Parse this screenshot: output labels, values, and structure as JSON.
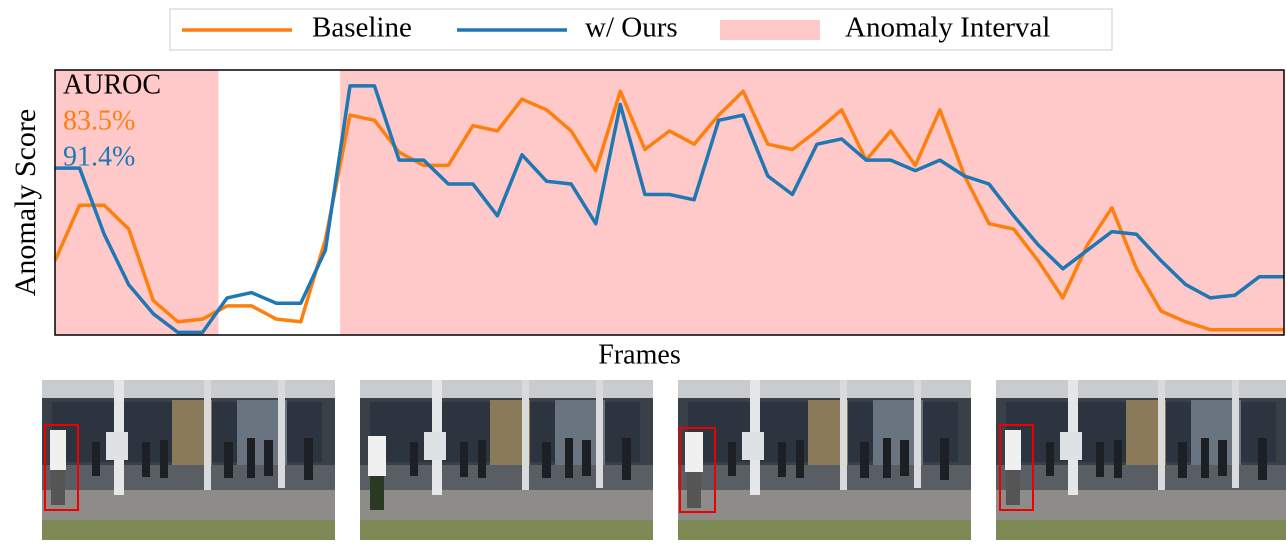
{
  "chart_data": {
    "type": "line",
    "y_label": "Anomaly Score",
    "x_label": "Frames",
    "xlim": [
      0,
      100
    ],
    "ylim": [
      0,
      1
    ],
    "x": [
      0,
      2,
      4,
      6,
      8,
      10,
      12,
      14,
      16,
      18,
      20,
      22,
      24,
      26,
      28,
      30,
      32,
      34,
      36,
      38,
      40,
      42,
      44,
      46,
      48,
      50,
      52,
      54,
      56,
      58,
      60,
      62,
      64,
      66,
      68,
      70,
      72,
      74,
      76,
      78,
      80,
      82,
      84,
      86,
      88,
      90,
      92,
      94,
      96,
      98,
      100
    ],
    "series": [
      {
        "name": "Baseline",
        "color": "#ff7f0e",
        "values": [
          0.28,
          0.49,
          0.49,
          0.4,
          0.13,
          0.05,
          0.06,
          0.11,
          0.11,
          0.06,
          0.05,
          0.36,
          0.83,
          0.81,
          0.69,
          0.64,
          0.64,
          0.79,
          0.77,
          0.89,
          0.85,
          0.77,
          0.62,
          0.92,
          0.7,
          0.77,
          0.72,
          0.83,
          0.92,
          0.72,
          0.7,
          0.77,
          0.85,
          0.66,
          0.77,
          0.64,
          0.85,
          0.6,
          0.42,
          0.4,
          0.28,
          0.14,
          0.34,
          0.48,
          0.25,
          0.09,
          0.05,
          0.02,
          0.02,
          0.02,
          0.02
        ]
      },
      {
        "name": "w/ Ours",
        "color": "#1f77b4",
        "values": [
          0.63,
          0.63,
          0.38,
          0.19,
          0.08,
          0.01,
          0.01,
          0.14,
          0.16,
          0.12,
          0.12,
          0.32,
          0.94,
          0.94,
          0.66,
          0.66,
          0.57,
          0.57,
          0.45,
          0.68,
          0.58,
          0.57,
          0.42,
          0.87,
          0.53,
          0.53,
          0.51,
          0.81,
          0.83,
          0.6,
          0.53,
          0.72,
          0.74,
          0.66,
          0.66,
          0.62,
          0.66,
          0.6,
          0.57,
          0.45,
          0.34,
          0.25,
          0.32,
          0.39,
          0.38,
          0.28,
          0.19,
          0.14,
          0.15,
          0.22,
          0.22
        ]
      }
    ],
    "anomaly_intervals": {
      "name": "Anomaly Interval",
      "color": "#ffc9c9",
      "ranges": [
        [
          0,
          13.3
        ],
        [
          23.2,
          100
        ]
      ]
    },
    "annotations": [
      "AUROC",
      "83.5%",
      "91.4%"
    ]
  }
}
